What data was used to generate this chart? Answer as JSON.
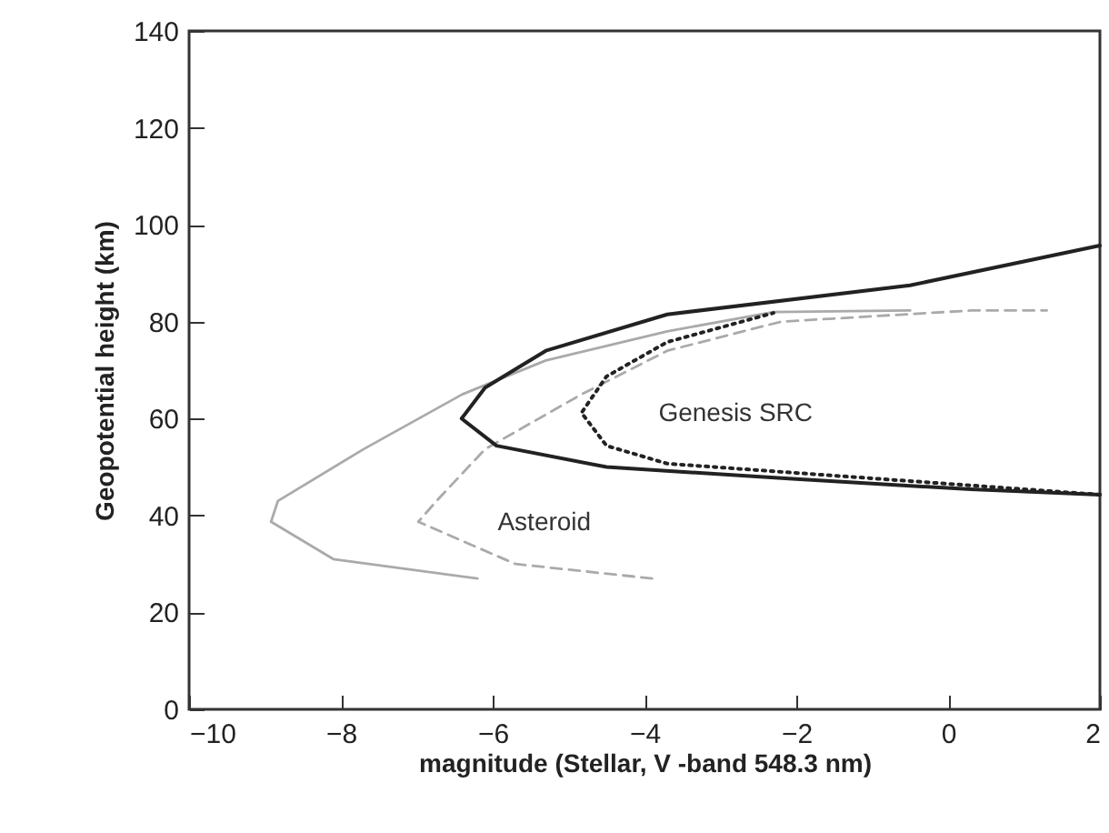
{
  "chart_data": {
    "type": "line",
    "xlabel": "magnitude (Stellar, V -band 548.3 nm)",
    "ylabel": "Geopotential height (km)",
    "xlim": [
      -10,
      2
    ],
    "xticks": [
      -10,
      -8,
      -6,
      -4,
      -2,
      0,
      2
    ],
    "ylim": [
      0,
      140
    ],
    "yticks": [
      0,
      20,
      40,
      60,
      80,
      100,
      120,
      140
    ],
    "grid": false,
    "marker": "none",
    "series": [
      {
        "color": "#aaaaaa",
        "line_style": "solid",
        "x": [
          -6.2,
          -8.1,
          -8.92,
          -8.83,
          -7.7,
          -6.4,
          -5.3,
          -3.7,
          -2.3,
          -0.5
        ],
        "values": [
          27,
          31,
          38.7,
          43,
          53.7,
          65,
          72,
          78,
          82,
          82.3
        ]
      },
      {
        "color": "#aaaaaa",
        "line_style": "dashed",
        "x": [
          -3.9,
          -5.7,
          -6.98,
          -6.74,
          -6.1,
          -4.83,
          -3.7,
          -2.2,
          0.3,
          1.3
        ],
        "values": [
          27,
          30,
          38.7,
          43,
          53.7,
          65,
          74,
          80,
          82.3,
          82.3
        ]
      },
      {
        "color": "#222222",
        "line_style": "dotted",
        "x": [
          2,
          -1.3,
          -3.7,
          -4.5,
          -4.83,
          -4.5,
          -3.7,
          -2.3
        ],
        "values": [
          44.3,
          48,
          50.7,
          54.4,
          61.2,
          68.7,
          75.8,
          81.8
        ]
      },
      {
        "color": "#222222",
        "line_style": "solid",
        "x": [
          2,
          0.3,
          -2.1,
          -4.5,
          -5.95,
          -6.41,
          -6.1,
          -5.3,
          -3.7,
          -0.5,
          2
        ],
        "values": [
          44.3,
          45.4,
          47.6,
          50,
          54.4,
          60,
          66.4,
          74,
          81.5,
          87.5,
          95.7
        ]
      }
    ],
    "annotations": [
      "Genesis SRC",
      "Asteroid"
    ]
  }
}
